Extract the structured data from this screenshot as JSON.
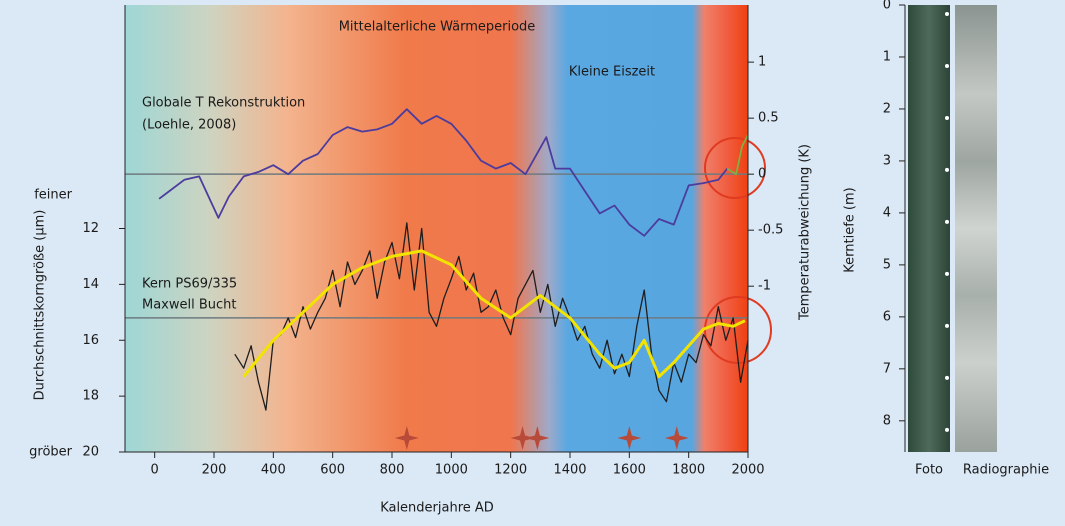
{
  "chart_data": [
    {
      "type": "line",
      "xlabel": "Kalenderjahre AD",
      "ylabel": "Durchschnittskorngröße (µm)",
      "y2label": "Temperaturabweichung (K)",
      "ylabel_top": "feiner",
      "ylabel_bottom": "gröber",
      "annotations": [
        "Mittelalterliche Wärmeperiode",
        "Kleine Eiszeit",
        "Globale T Rekonstruktion",
        "(Loehle, 2008)",
        "Kern PS69/335",
        "Maxwell Bucht"
      ],
      "xlim": [
        -100,
        2000
      ],
      "xticks": [
        0,
        200,
        400,
        600,
        800,
        1000,
        1200,
        1400,
        1600,
        1800,
        2000
      ],
      "ylim": [
        20,
        4
      ],
      "yticks": [
        12,
        14,
        16,
        18,
        20
      ],
      "y2lim": [
        -2.48,
        1.51
      ],
      "y2ticks": [
        1,
        0.5,
        0,
        -0.5,
        -1
      ],
      "series": [
        {
          "color": "#4b3c9e",
          "axis": "y2",
          "x": [
            15,
            50,
            100,
            150,
            215,
            250,
            300,
            350,
            400,
            450,
            500,
            550,
            600,
            650,
            700,
            750,
            800,
            850,
            900,
            950,
            1000,
            1050,
            1100,
            1150,
            1200,
            1250,
            1320,
            1350,
            1400,
            1450,
            1500,
            1550,
            1600,
            1650,
            1700,
            1750,
            1800,
            1850,
            1900,
            1930
          ],
          "values": [
            -0.22,
            -0.15,
            -0.05,
            -0.02,
            -0.39,
            -0.2,
            -0.02,
            0.02,
            0.08,
            0.0,
            0.12,
            0.18,
            0.35,
            0.42,
            0.38,
            0.4,
            0.45,
            0.58,
            0.45,
            0.52,
            0.45,
            0.3,
            0.12,
            0.05,
            0.1,
            0.0,
            0.33,
            0.05,
            0.05,
            -0.15,
            -0.35,
            -0.28,
            -0.45,
            -0.55,
            -0.4,
            -0.45,
            -0.1,
            -0.08,
            -0.05,
            0.05
          ]
        },
        {
          "color": "#7fb040",
          "axis": "y2",
          "x": [
            1930,
            1960,
            1980,
            2000
          ],
          "values": [
            0.05,
            0.0,
            0.25,
            0.35
          ]
        },
        {
          "color": "#1e1e1e",
          "axis": "y",
          "x": [
            270,
            300,
            325,
            350,
            375,
            400,
            425,
            450,
            475,
            500,
            525,
            550,
            575,
            600,
            625,
            650,
            675,
            700,
            725,
            750,
            775,
            800,
            825,
            850,
            875,
            900,
            925,
            950,
            975,
            1000,
            1025,
            1050,
            1075,
            1100,
            1125,
            1150,
            1175,
            1200,
            1225,
            1250,
            1275,
            1300,
            1325,
            1350,
            1375,
            1400,
            1425,
            1450,
            1475,
            1500,
            1525,
            1550,
            1575,
            1600,
            1625,
            1650,
            1675,
            1700,
            1725,
            1750,
            1775,
            1800,
            1825,
            1850,
            1875,
            1900,
            1925,
            1950,
            1975,
            2000
          ],
          "values": [
            16.5,
            17.0,
            16.2,
            17.5,
            18.5,
            16.0,
            15.8,
            15.2,
            15.9,
            14.8,
            15.6,
            15.0,
            14.5,
            13.5,
            14.8,
            13.2,
            14.0,
            13.5,
            12.8,
            14.5,
            13.2,
            12.5,
            13.8,
            11.8,
            14.2,
            12.0,
            15.0,
            15.5,
            14.5,
            13.8,
            13.0,
            14.2,
            13.6,
            15.0,
            14.8,
            14.2,
            15.2,
            15.8,
            14.5,
            14.0,
            13.5,
            15.0,
            14.0,
            15.5,
            14.5,
            15.2,
            16.0,
            15.5,
            16.5,
            17.0,
            16.0,
            17.2,
            16.5,
            17.3,
            15.5,
            14.2,
            16.5,
            17.8,
            18.2,
            16.8,
            17.5,
            16.5,
            16.8,
            15.8,
            16.2,
            14.8,
            16.0,
            15.2,
            17.5,
            16.0
          ]
        },
        {
          "color": "#f2e400",
          "axis": "y",
          "x": [
            300,
            400,
            500,
            600,
            700,
            800,
            900,
            1000,
            1100,
            1200,
            1300,
            1400,
            1500,
            1550,
            1600,
            1650,
            1700,
            1750,
            1800,
            1850,
            1900,
            1950,
            1990
          ],
          "values": [
            17.3,
            16.0,
            15.0,
            14.0,
            13.4,
            13.0,
            12.8,
            13.3,
            14.5,
            15.2,
            14.4,
            15.2,
            16.5,
            17.0,
            16.8,
            16.0,
            17.3,
            16.8,
            16.2,
            15.6,
            15.4,
            15.5,
            15.3
          ]
        }
      ],
      "reference_lines": [
        {
          "axis": "y",
          "value": 15.2
        },
        {
          "axis": "y2",
          "value": 0
        }
      ],
      "event_markers": {
        "color": "#b84a3a",
        "x": [
          850,
          1240,
          1290,
          1600,
          1760
        ]
      }
    },
    {
      "type": "core-image",
      "ylabel": "Kerntiefe (m)",
      "categories": [
        "Foto",
        "Radiographie"
      ],
      "ylim": [
        0,
        8.6
      ],
      "yticks": [
        0,
        1,
        2,
        3,
        4,
        5,
        6,
        7,
        8
      ]
    }
  ]
}
